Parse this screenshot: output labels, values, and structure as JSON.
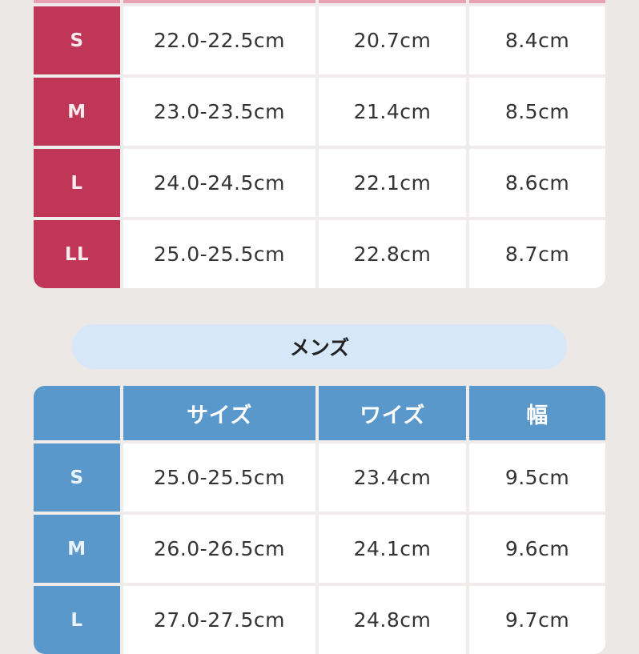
{
  "colors": {
    "women_accent": "#bf3657",
    "women_header": "#e9a1b2",
    "men_accent": "#5a98cb",
    "men_pill": "#d5e7f8"
  },
  "women": {
    "rows": [
      {
        "size": "S",
        "foot": "22.0-22.5cm",
        "wise": "20.7cm",
        "width": "8.4cm"
      },
      {
        "size": "M",
        "foot": "23.0-23.5cm",
        "wise": "21.4cm",
        "width": "8.5cm"
      },
      {
        "size": "L",
        "foot": "24.0-24.5cm",
        "wise": "22.1cm",
        "width": "8.6cm"
      },
      {
        "size": "LL",
        "foot": "25.0-25.5cm",
        "wise": "22.8cm",
        "width": "8.7cm"
      }
    ]
  },
  "men": {
    "title": "メンズ",
    "headers": [
      "",
      "サイズ",
      "ワイズ",
      "幅"
    ],
    "rows": [
      {
        "size": "S",
        "foot": "25.0-25.5cm",
        "wise": "23.4cm",
        "width": "9.5cm"
      },
      {
        "size": "M",
        "foot": "26.0-26.5cm",
        "wise": "24.1cm",
        "width": "9.6cm"
      },
      {
        "size": "L",
        "foot": "27.0-27.5cm",
        "wise": "24.8cm",
        "width": "9.7cm"
      }
    ]
  }
}
